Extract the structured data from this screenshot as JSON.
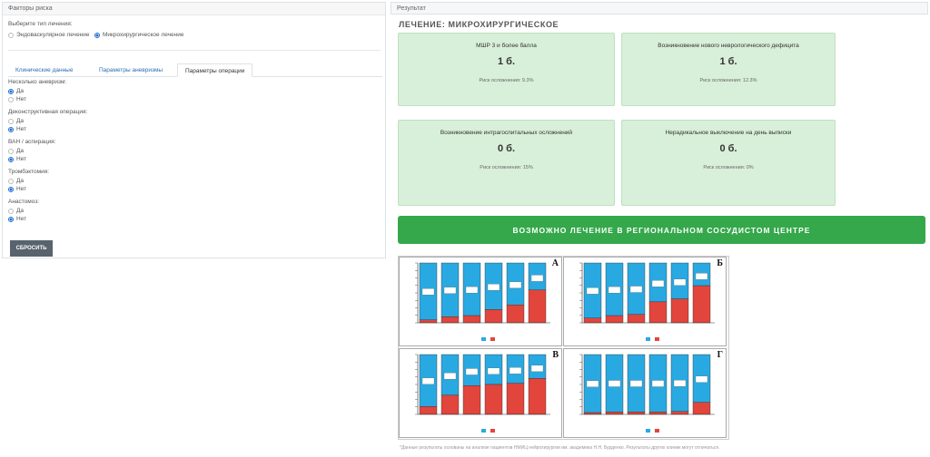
{
  "left": {
    "title": "Факторы риска",
    "treatment_label": "Выберите тип лечения:",
    "treatment_options": [
      "Эндоваскулярное лечение",
      "Микрохирургическое лечение"
    ],
    "treatment_selected": 1,
    "tabs": [
      "Клинические данные",
      "Параметры аневризмы",
      "Параметры операции"
    ],
    "active_tab": 2,
    "questions": [
      {
        "label": "Несколько аневризм:",
        "yes": "Да",
        "no": "Нет",
        "selected": "yes"
      },
      {
        "label": "Деконструктивная операция:",
        "yes": "Да",
        "no": "Нет",
        "selected": "no"
      },
      {
        "label": "ВАН / аспирация:",
        "yes": "Да",
        "no": "Нет",
        "selected": "no"
      },
      {
        "label": "Тромбэктомия:",
        "yes": "Да",
        "no": "Нет",
        "selected": "no"
      },
      {
        "label": "Анастомоз:",
        "yes": "Да",
        "no": "Нет",
        "selected": "no"
      }
    ],
    "reset_label": "СБРОСИТЬ"
  },
  "right": {
    "title": "Результат",
    "heading": "ЛЕЧЕНИЕ: МИКРОХИРУРГИЧЕСКОЕ",
    "cards": [
      {
        "title": "МШР 3 и более балла",
        "value": "1 б.",
        "risk": "Риск осложнения: 9.3%"
      },
      {
        "title": "Возникновение нового неврологического дефицита",
        "value": "1 б.",
        "risk": "Риск осложнения: 12.3%"
      },
      {
        "title": "Возникновение интрагоспитальных осложнений",
        "value": "0 б.",
        "risk": "Риск осложнения: 15%"
      },
      {
        "title": "Нерадикальное выключение на день выписки",
        "value": "0 б.",
        "risk": "Риск осложнения: 0%"
      }
    ],
    "banner": "ВОЗМОЖНО ЛЕЧЕНИЕ В РЕГИОНАЛЬНОМ СОСУДИСТОМ ЦЕНТРЕ",
    "figure_letters": [
      "А",
      "Б",
      "В",
      "Г"
    ],
    "footnote": "*Данные результаты основаны на анализе пациентов НМИЦ нейрохирургии им. академика Н.Н. Бурденко. Результаты других клиник могут отличаться.",
    "colors": {
      "blue": "#29a9e1",
      "red": "#e2453c",
      "card": "#d8efd9",
      "banner": "#34a84a"
    }
  },
  "chart_data": [
    {
      "type": "bar",
      "panel": "А",
      "series": [
        {
          "values": [
            0.95,
            0.9,
            0.88,
            0.78,
            0.7,
            0.45
          ]
        },
        {
          "values": [
            0.05,
            0.1,
            0.12,
            0.22,
            0.3,
            0.55
          ]
        }
      ]
    },
    {
      "type": "bar",
      "panel": "Б",
      "series": [
        {
          "values": [
            0.92,
            0.88,
            0.86,
            0.65,
            0.6,
            0.38
          ]
        },
        {
          "values": [
            0.08,
            0.12,
            0.14,
            0.35,
            0.4,
            0.62
          ]
        }
      ]
    },
    {
      "type": "bar",
      "panel": "В",
      "series": [
        {
          "values": [
            0.87,
            0.68,
            0.52,
            0.5,
            0.48,
            0.4
          ]
        },
        {
          "values": [
            0.13,
            0.32,
            0.48,
            0.5,
            0.52,
            0.6
          ]
        }
      ]
    },
    {
      "type": "bar",
      "panel": "Г",
      "series": [
        {
          "values": [
            0.97,
            0.96,
            0.96,
            0.96,
            0.95,
            0.8
          ]
        },
        {
          "values": [
            0.03,
            0.04,
            0.04,
            0.04,
            0.05,
            0.2
          ]
        }
      ]
    }
  ]
}
